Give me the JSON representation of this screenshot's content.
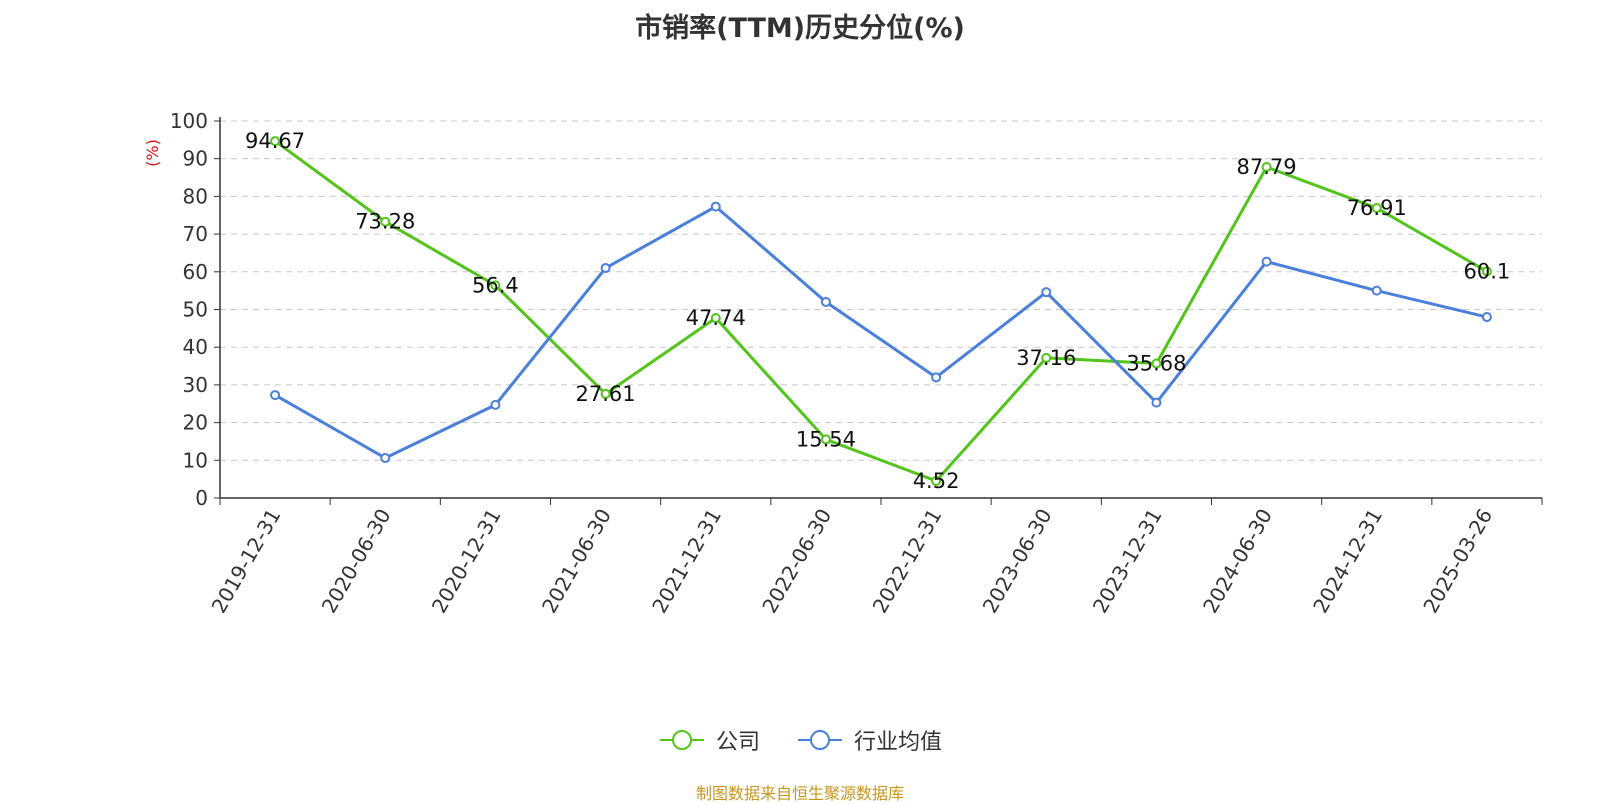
{
  "chart_data": {
    "type": "line",
    "title": "市销率(TTM)历史分位(%)",
    "ylabel": "(%)",
    "xlabel": "",
    "ylim": [
      0,
      100
    ],
    "yticks": [
      0,
      10,
      20,
      30,
      40,
      50,
      60,
      70,
      80,
      90,
      100
    ],
    "grid": true,
    "legend_position": "bottom",
    "categories": [
      "2019-12-31",
      "2020-06-30",
      "2020-12-31",
      "2021-06-30",
      "2021-12-31",
      "2022-06-30",
      "2022-12-31",
      "2023-06-30",
      "2023-12-31",
      "2024-06-30",
      "2024-12-31",
      "2025-03-26"
    ],
    "series": [
      {
        "name": "公司",
        "color": "#52c41a",
        "values": [
          94.67,
          73.28,
          56.4,
          27.61,
          47.74,
          15.54,
          4.52,
          37.16,
          35.68,
          87.79,
          76.91,
          60.1
        ],
        "labels": [
          "94.67",
          "73.28",
          "56.4",
          "27.61",
          "47.74",
          "15.54",
          "4.52",
          "37.16",
          "35.68",
          "87.79",
          "76.91",
          "60.1"
        ]
      },
      {
        "name": "行业均值",
        "color": "#4a7fdb",
        "values": [
          27.3,
          10.6,
          24.7,
          61.0,
          77.3,
          52.0,
          32.0,
          54.6,
          25.3,
          62.7,
          55.0,
          48.0
        ]
      }
    ]
  },
  "source": "制图数据来自恒生聚源数据库"
}
